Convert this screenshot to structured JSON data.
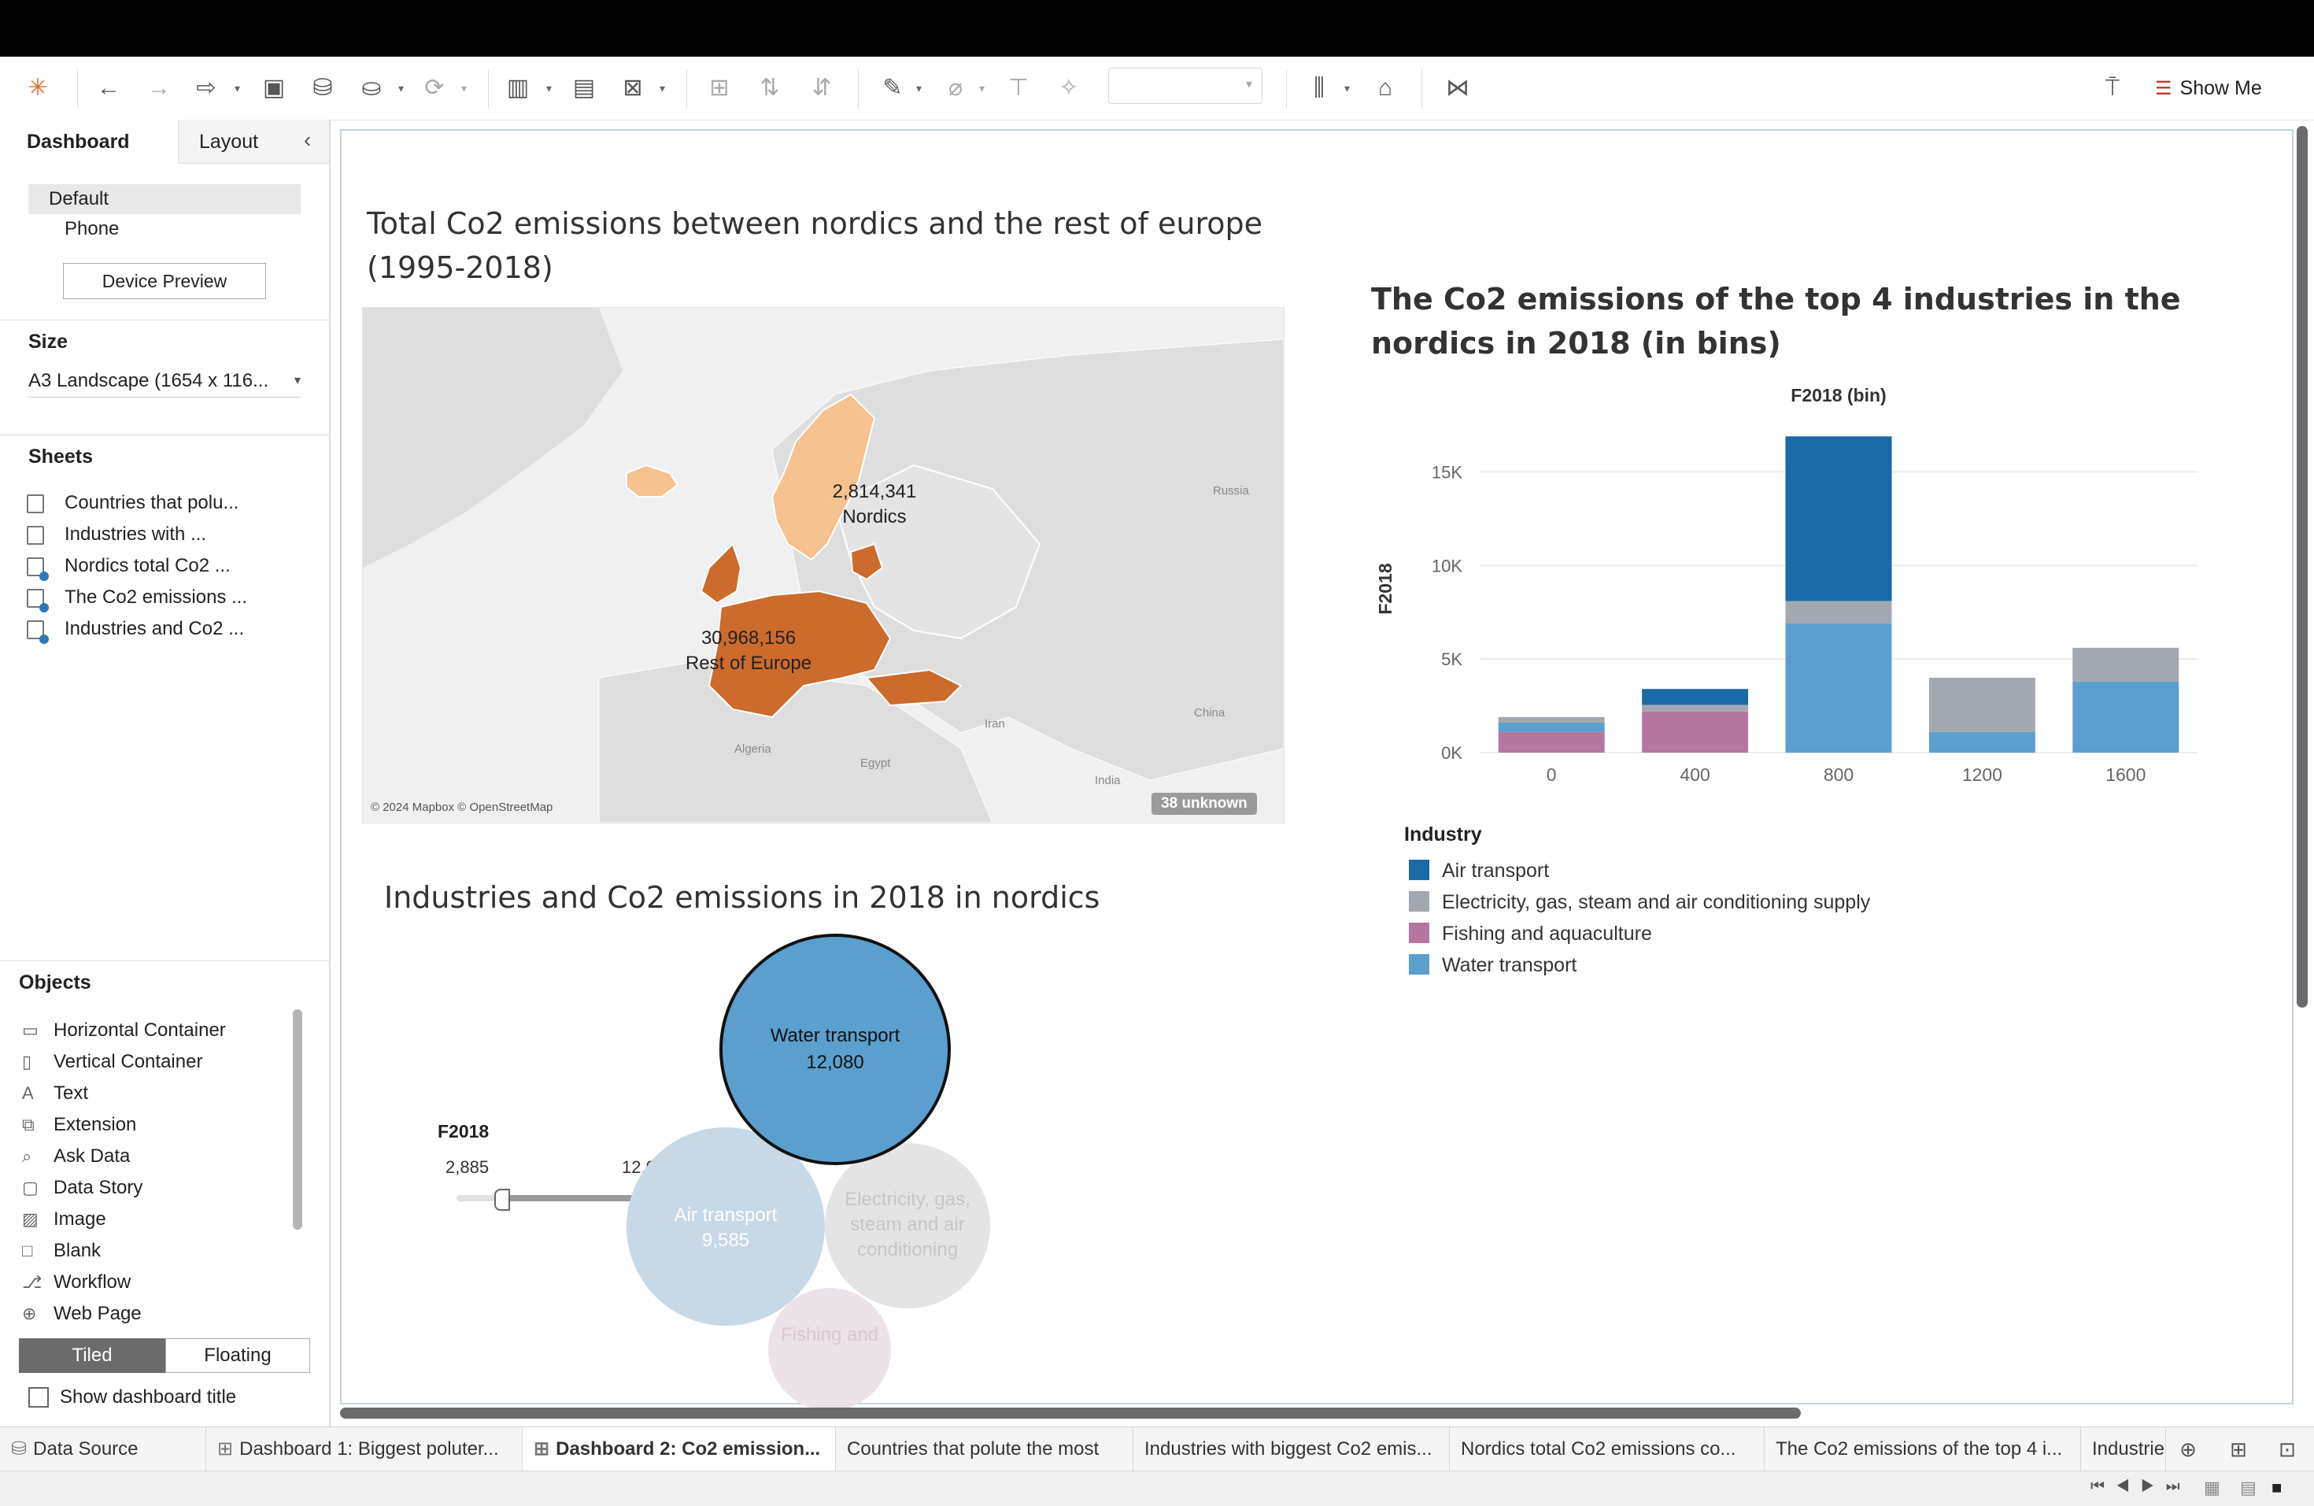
{
  "toolbar": {
    "show_me_label": "Show Me"
  },
  "left_pane": {
    "tabs": [
      "Dashboard",
      "Layout"
    ],
    "device": {
      "options": [
        "Default",
        "Phone"
      ],
      "preview_button": "Device Preview"
    },
    "size": {
      "title": "Size",
      "value": "A3 Landscape (1654 x 116..."
    },
    "sheets": {
      "title": "Sheets",
      "items": [
        "Countries that polu...",
        "Industries with ...",
        "Nordics total Co2 ...",
        "The Co2 emissions ...",
        "Industries and Co2 ..."
      ]
    },
    "objects": {
      "title": "Objects",
      "items": [
        {
          "label": "Horizontal Container",
          "icon": "horizontal-container-icon"
        },
        {
          "label": "Vertical Container",
          "icon": "vertical-container-icon"
        },
        {
          "label": "Text",
          "icon": "text-icon"
        },
        {
          "label": "Extension",
          "icon": "extension-icon"
        },
        {
          "label": "Ask Data",
          "icon": "ask-data-icon"
        },
        {
          "label": "Data Story",
          "icon": "data-story-icon"
        },
        {
          "label": "Image",
          "icon": "image-icon"
        },
        {
          "label": "Blank",
          "icon": "blank-icon"
        },
        {
          "label": "Workflow",
          "icon": "workflow-icon"
        },
        {
          "label": "Web Page",
          "icon": "web-page-icon"
        }
      ],
      "layout_toggle": [
        "Tiled",
        "Floating"
      ],
      "show_title_label": "Show dashboard title"
    }
  },
  "dashboard": {
    "map_title": "Total Co2 emissions between nordics and the rest of europe (1995-2018)",
    "map": {
      "nordics_value": "2,814,341",
      "nordics_label": "Nordics",
      "europe_value": "30,968,156",
      "europe_label": "Rest of Europe",
      "place_labels": [
        "Russia",
        "China",
        "Iran",
        "India",
        "Algeria",
        "Egypt"
      ],
      "attribution": "© 2024 Mapbox © OpenStreetMap",
      "unknown_badge": "38 unknown",
      "colors": {
        "nordics": "#f6c28f",
        "europe": "#cc6b2c",
        "land": "#dedede"
      }
    },
    "bubble_title": "Industries and Co2 emissions in 2018 in nordics",
    "filter": {
      "title": "F2018",
      "min": "2,885",
      "max": "12,080"
    },
    "bubbles": [
      {
        "name": "Water transport",
        "value": "12,080",
        "color": "#5b9fcf"
      },
      {
        "name": "Air transport",
        "value": "9,585",
        "color": "#c7d9e6"
      },
      {
        "name": "Electricity, gas, steam and air conditioning",
        "value": "",
        "color": "#e4e4e4"
      },
      {
        "name": "Fishing and",
        "value": "",
        "color": "#ece2ea"
      }
    ],
    "bar_title": "The Co2 emissions of the top 4 industries in the nordics in 2018 (in bins)",
    "legend_title": "Industry"
  },
  "chart_data": {
    "type": "bar",
    "stacked": true,
    "title": "The Co2 emissions of the top 4 industries in the nordics in 2018 (in bins)",
    "xlabel": "F2018 (bin)",
    "ylabel": "F2018",
    "categories": [
      "0",
      "400",
      "800",
      "1200",
      "1600"
    ],
    "yticks": [
      "0K",
      "5K",
      "10K",
      "15K"
    ],
    "ylim": [
      0,
      17500
    ],
    "legend_position": "bottom-left",
    "series": [
      {
        "name": "Fishing and aquaculture",
        "color": "#b5779f",
        "values": [
          1100,
          2200,
          0,
          0,
          0
        ]
      },
      {
        "name": "Water transport",
        "color": "#5b9fcf",
        "values": [
          500,
          0,
          6900,
          1100,
          3800
        ]
      },
      {
        "name": "Electricity, gas, steam and air conditioning supply",
        "color": "#a3a8b0",
        "values": [
          300,
          350,
          1200,
          2900,
          1800
        ]
      },
      {
        "name": "Air transport",
        "color": "#1a6aa8",
        "values": [
          0,
          850,
          8800,
          0,
          0
        ]
      }
    ]
  },
  "bottom_tabs": [
    "Data Source",
    "Dashboard 1: Biggest poluter...",
    "Dashboard 2: Co2 emission...",
    "Countries that polute the most",
    "Industries with biggest Co2 emis...",
    "Nordics total Co2 emissions co...",
    "The Co2 emissions of the top 4 i...",
    "Industrie"
  ]
}
